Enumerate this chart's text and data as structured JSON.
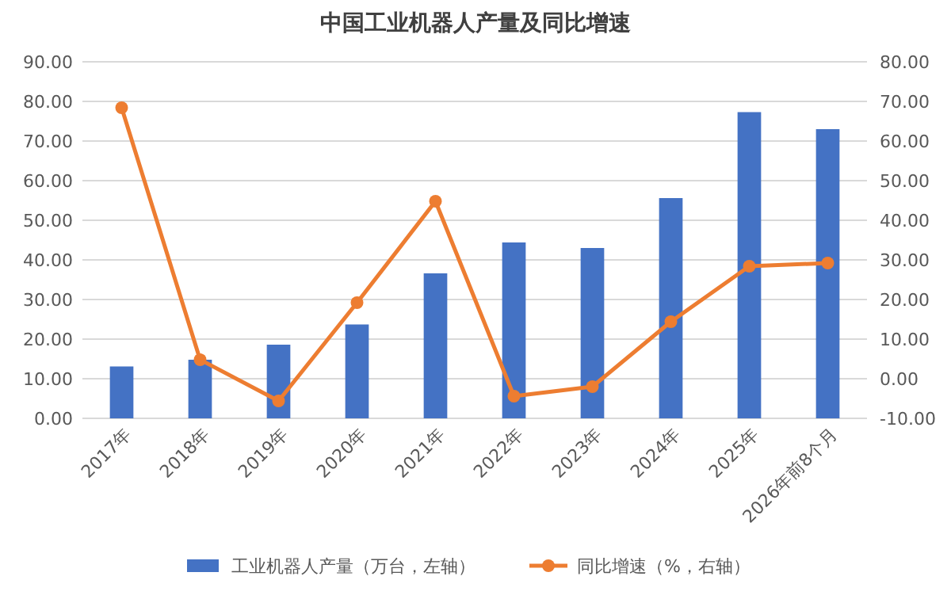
{
  "chart_data": {
    "type": "bar",
    "title": "中国工业机器人产量及同比增速",
    "categories": [
      "2017年",
      "2018年",
      "2019年",
      "2020年",
      "2021年",
      "2022年",
      "2023年",
      "2024年",
      "2025年",
      "2026年前8个月"
    ],
    "series": [
      {
        "name": "工业机器人产量（万台，左轴）",
        "color": "#4472c4",
        "values": [
          13.1,
          14.8,
          18.6,
          23.7,
          36.6,
          44.4,
          43.0,
          55.6,
          77.3,
          73.0
        ]
      },
      {
        "name": "同比增速（%，右轴）",
        "type": "line",
        "axis": "y2",
        "color": "#ed7d31",
        "values": [
          68.4,
          4.8,
          -5.6,
          19.2,
          44.8,
          -4.4,
          -2.0,
          14.4,
          28.4,
          29.2
        ]
      }
    ],
    "ylim": [
      0,
      90
    ],
    "yticks": [
      {
        "value": 0,
        "label": "0.00"
      },
      {
        "value": 10,
        "label": "10.00"
      },
      {
        "value": 20,
        "label": "20.00"
      },
      {
        "value": 30,
        "label": "30.00"
      },
      {
        "value": 40,
        "label": "40.00"
      },
      {
        "value": 50,
        "label": "50.00"
      },
      {
        "value": 60,
        "label": "60.00"
      },
      {
        "value": 70,
        "label": "70.00"
      },
      {
        "value": 80,
        "label": "80.00"
      },
      {
        "value": 90,
        "label": "90.00"
      }
    ],
    "y2lim": [
      -10,
      80
    ],
    "y2ticks": [
      {
        "value": -10,
        "label": "-10.00"
      },
      {
        "value": 0,
        "label": "0.00"
      },
      {
        "value": 10,
        "label": "10.00"
      },
      {
        "value": 20,
        "label": "20.00"
      },
      {
        "value": 30,
        "label": "30.00"
      },
      {
        "value": 40,
        "label": "40.00"
      },
      {
        "value": 50,
        "label": "50.00"
      },
      {
        "value": 60,
        "label": "60.00"
      },
      {
        "value": 70,
        "label": "70.00"
      },
      {
        "value": 80,
        "label": "80.00"
      }
    ],
    "grid": "y",
    "legend": "bottom",
    "marker": "circle",
    "line_style": "solid"
  }
}
